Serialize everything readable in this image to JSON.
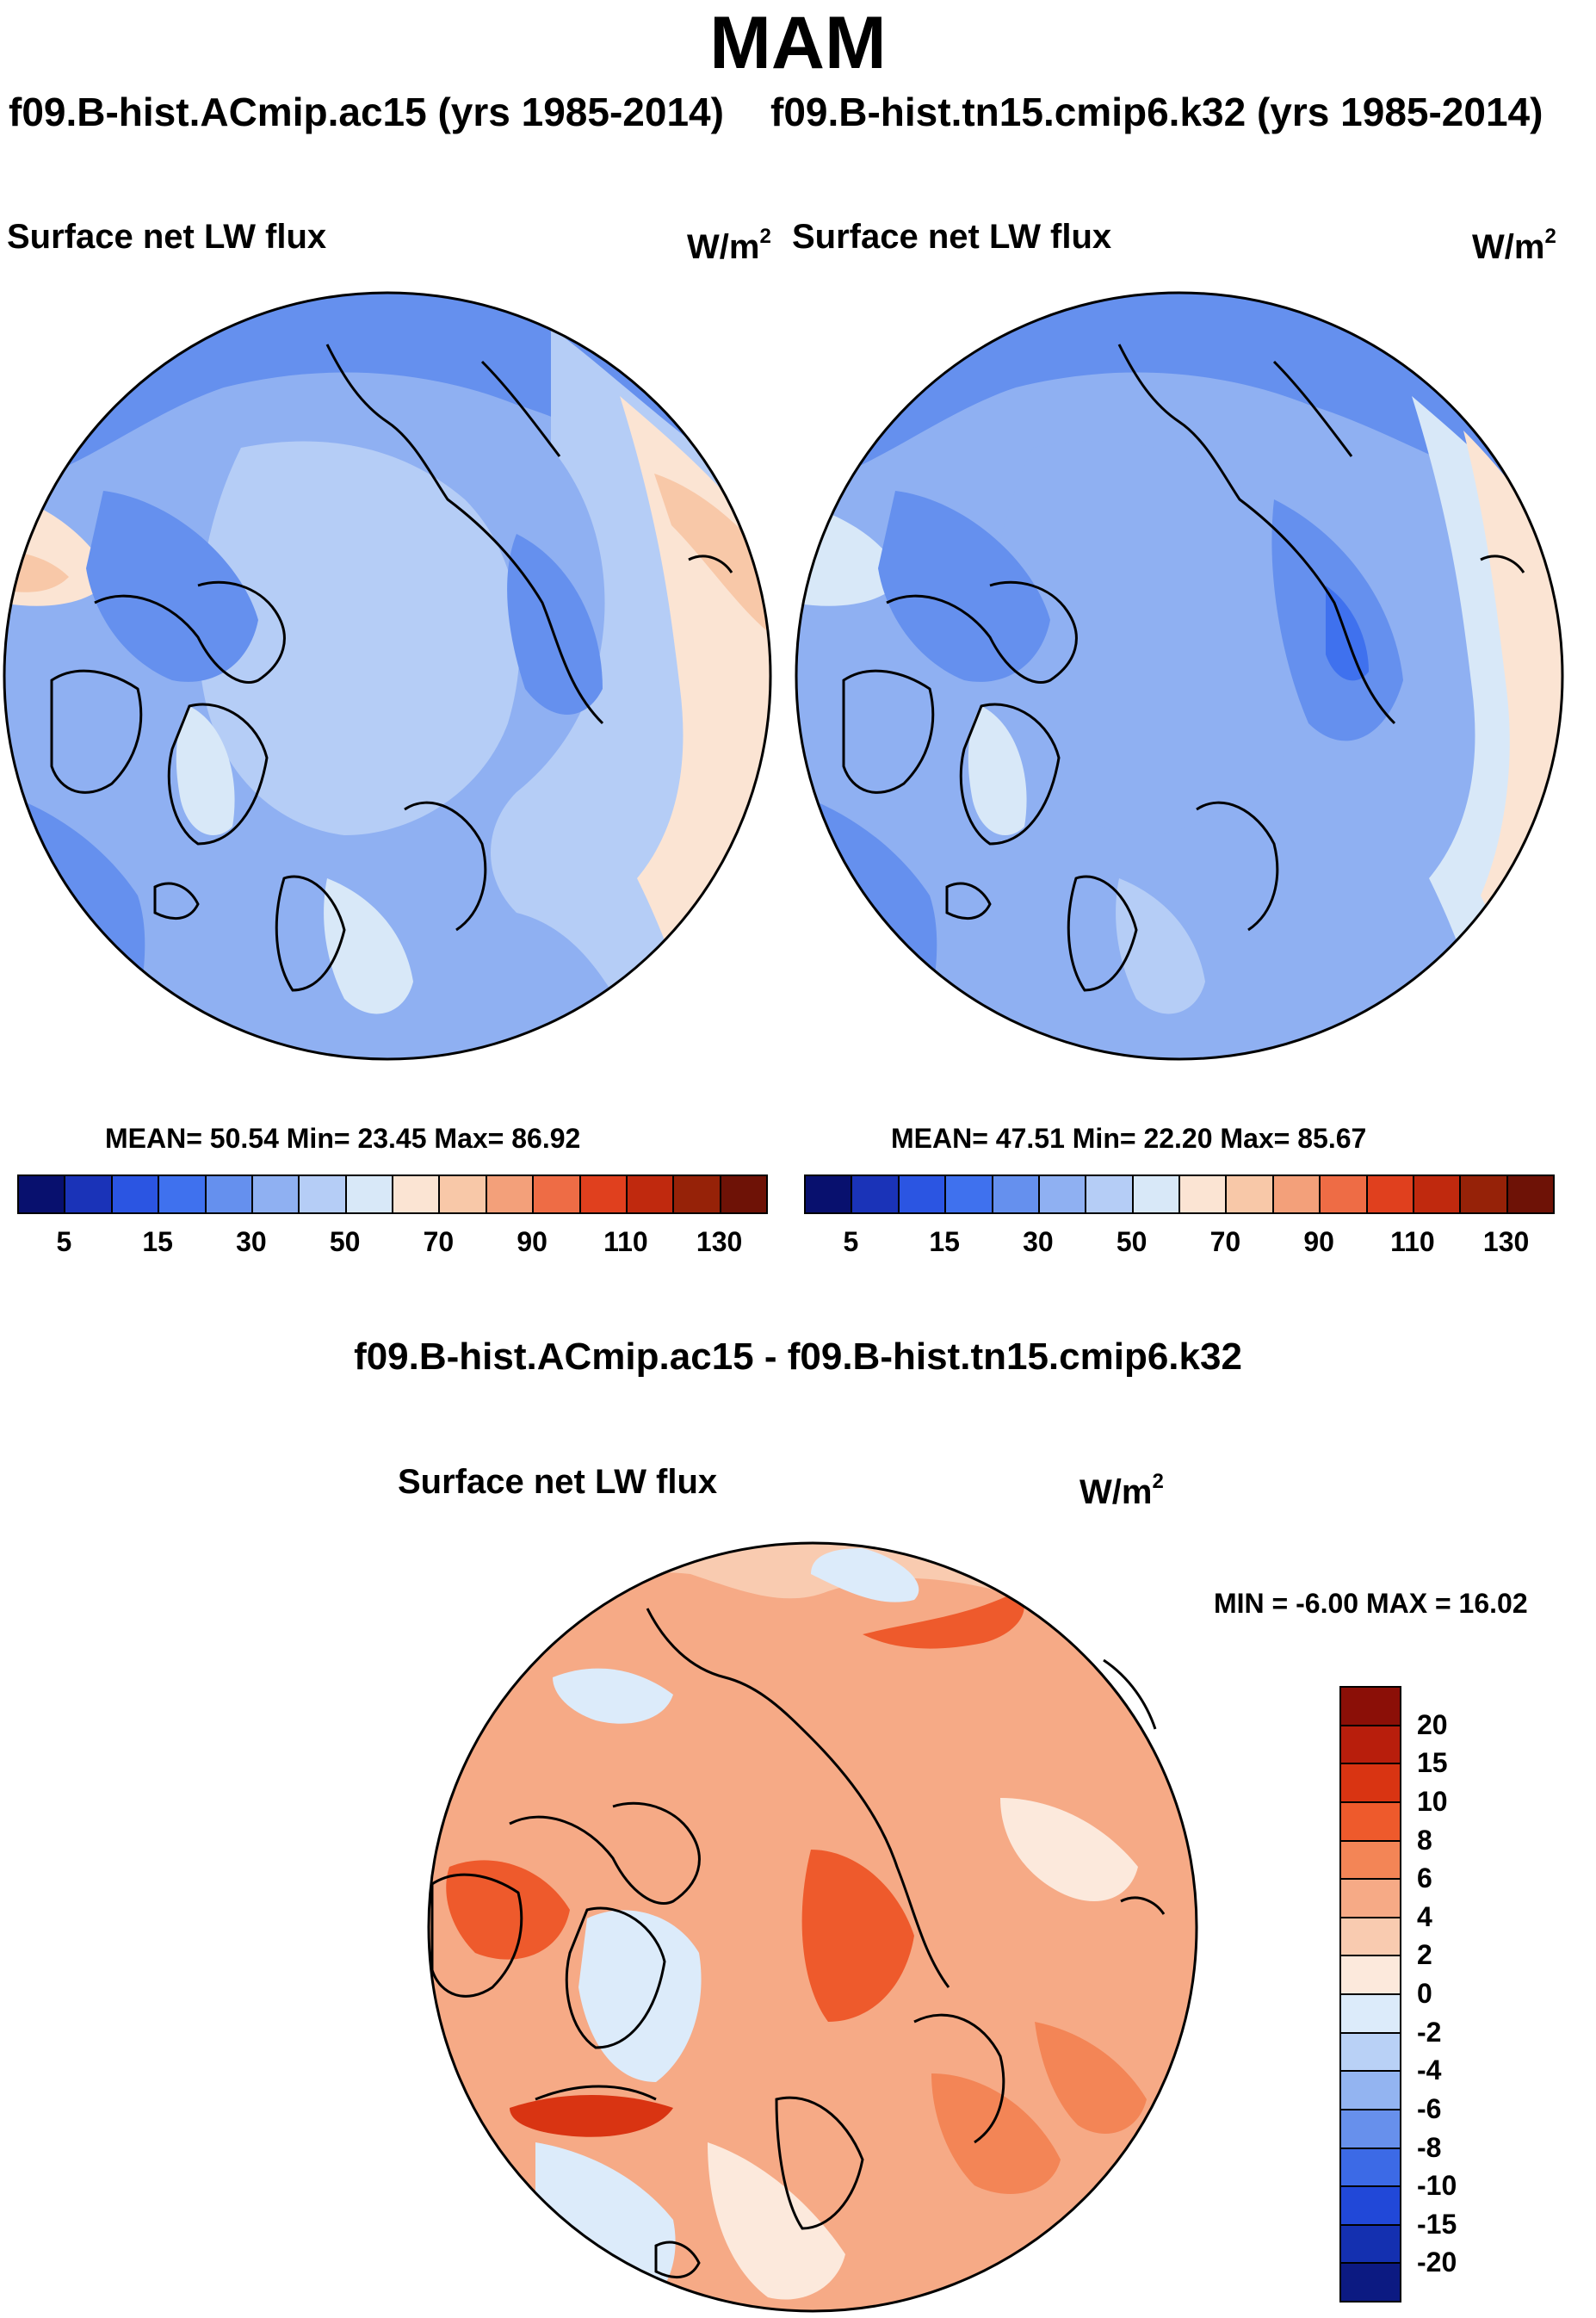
{
  "title": "MAM",
  "panels": [
    {
      "run_title": "f09.B-hist.ACmip.ac15 (yrs 1985-2014)",
      "variable": "Surface net LW flux",
      "units": "W/m",
      "units_sup": "2",
      "stats_text": "MEAN=  50.54  Min=  23.45  Max=  86.92"
    },
    {
      "run_title": "f09.B-hist.tn15.cmip6.k32 (yrs 1985-2014)",
      "variable": "Surface net LW flux",
      "units": "W/m",
      "units_sup": "2",
      "stats_text": "MEAN=  47.51  Min=  22.20  Max=  85.67"
    }
  ],
  "diff_panel": {
    "title": "f09.B-hist.ACmip.ac15 - f09.B-hist.tn15.cmip6.k32",
    "variable": "Surface net LW flux",
    "units": "W/m",
    "units_sup": "2",
    "minmax_text": "MIN =  -6.00 MAX =  16.02"
  },
  "chart_data": [
    {
      "type": "heatmap",
      "projection": "north-polar-stereographic",
      "title": "f09.B-hist.ACmip.ac15 (yrs 1985-2014)",
      "variable": "Surface net LW flux",
      "units": "W/m2",
      "mean": 50.54,
      "min": 23.45,
      "max": 86.92,
      "colorbar": {
        "orientation": "horizontal",
        "tick_labels": [
          "5",
          "15",
          "30",
          "50",
          "70",
          "90",
          "110",
          "130"
        ],
        "levels": [
          5,
          10,
          15,
          20,
          30,
          40,
          50,
          60,
          70,
          80,
          90,
          100,
          110,
          120,
          130
        ],
        "colors": [
          "#08106e",
          "#1a33b8",
          "#2b55e2",
          "#3f71ee",
          "#6590ee",
          "#8fb0f2",
          "#b5cdf6",
          "#d8e8f8",
          "#fbe4d3",
          "#f8c8a8",
          "#f3a07a",
          "#ee6c45",
          "#e0401e",
          "#c0290e",
          "#962208",
          "#6e1206"
        ]
      }
    },
    {
      "type": "heatmap",
      "projection": "north-polar-stereographic",
      "title": "f09.B-hist.tn15.cmip6.k32 (yrs 1985-2014)",
      "variable": "Surface net LW flux",
      "units": "W/m2",
      "mean": 47.51,
      "min": 22.2,
      "max": 85.67,
      "colorbar": {
        "orientation": "horizontal",
        "tick_labels": [
          "5",
          "15",
          "30",
          "50",
          "70",
          "90",
          "110",
          "130"
        ],
        "levels": [
          5,
          10,
          15,
          20,
          30,
          40,
          50,
          60,
          70,
          80,
          90,
          100,
          110,
          120,
          130
        ],
        "colors": [
          "#08106e",
          "#1a33b8",
          "#2b55e2",
          "#3f71ee",
          "#6590ee",
          "#8fb0f2",
          "#b5cdf6",
          "#d8e8f8",
          "#fbe4d3",
          "#f8c8a8",
          "#f3a07a",
          "#ee6c45",
          "#e0401e",
          "#c0290e",
          "#962208",
          "#6e1206"
        ]
      }
    },
    {
      "type": "heatmap",
      "projection": "north-polar-stereographic",
      "title": "f09.B-hist.ACmip.ac15 - f09.B-hist.tn15.cmip6.k32",
      "variable": "Surface net LW flux",
      "units": "W/m2",
      "min": -6.0,
      "max": 16.02,
      "colorbar": {
        "orientation": "vertical",
        "tick_labels": [
          "20",
          "15",
          "10",
          "8",
          "6",
          "4",
          "2",
          "0",
          "-2",
          "-4",
          "-6",
          "-8",
          "-10",
          "-15",
          "-20"
        ],
        "colors_top_to_bottom": [
          "#8b0f07",
          "#b81e0c",
          "#d93412",
          "#ee5a2c",
          "#f38556",
          "#f6aa86",
          "#f9cbb0",
          "#fce9dc",
          "#dcebfa",
          "#b9d1f6",
          "#93b4f1",
          "#6790ec",
          "#3c6ae6",
          "#2148d8",
          "#1430b0",
          "#0c1a82"
        ]
      }
    }
  ]
}
